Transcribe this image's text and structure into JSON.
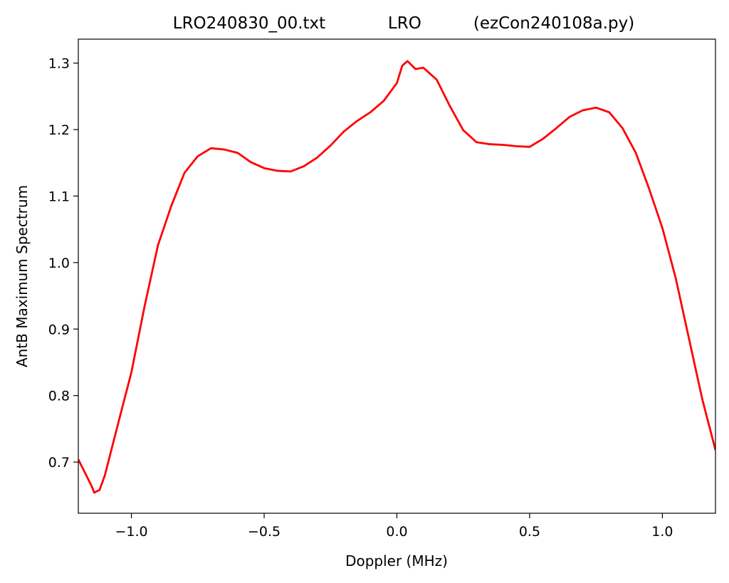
{
  "chart_data": {
    "type": "line",
    "title": "LRO240830_00.txt            LRO          (ezCon240108a.py)",
    "x_label": "Doppler (MHz)",
    "y_label": "AntB Maximum Spectrum",
    "x": [
      -1.2,
      -1.15,
      -1.14,
      -1.12,
      -1.1,
      -1.05,
      -1.0,
      -0.95,
      -0.9,
      -0.85,
      -0.8,
      -0.75,
      -0.7,
      -0.65,
      -0.6,
      -0.55,
      -0.5,
      -0.45,
      -0.4,
      -0.35,
      -0.3,
      -0.25,
      -0.2,
      -0.15,
      -0.1,
      -0.05,
      0.0,
      0.02,
      0.04,
      0.07,
      0.1,
      0.15,
      0.2,
      0.25,
      0.3,
      0.35,
      0.4,
      0.45,
      0.5,
      0.55,
      0.6,
      0.65,
      0.7,
      0.75,
      0.8,
      0.85,
      0.9,
      0.95,
      1.0,
      1.05,
      1.1,
      1.15,
      1.2
    ],
    "series": [
      {
        "color": "#ff0000",
        "values": [
          0.704,
          0.664,
          0.654,
          0.658,
          0.68,
          0.758,
          0.835,
          0.935,
          1.026,
          1.085,
          1.135,
          1.16,
          1.172,
          1.17,
          1.165,
          1.151,
          1.142,
          1.138,
          1.137,
          1.145,
          1.158,
          1.176,
          1.197,
          1.213,
          1.226,
          1.243,
          1.27,
          1.296,
          1.303,
          1.291,
          1.293,
          1.275,
          1.235,
          1.199,
          1.181,
          1.178,
          1.177,
          1.175,
          1.174,
          1.186,
          1.202,
          1.219,
          1.229,
          1.233,
          1.226,
          1.202,
          1.165,
          1.111,
          1.052,
          0.977,
          0.886,
          0.795,
          0.718
        ]
      }
    ],
    "xlim": [
      -1.2,
      1.2
    ],
    "ylim": [
      0.623,
      1.336
    ],
    "xticks": [
      {
        "value": -1.0,
        "label": "−1.0"
      },
      {
        "value": -0.5,
        "label": "−0.5"
      },
      {
        "value": 0.0,
        "label": "0.0"
      },
      0.5,
      {
        "value": 1.0,
        "label": "1.0"
      }
    ],
    "yticks": [
      0.7,
      0.8,
      0.9,
      {
        "value": 1.0,
        "label": "1.0"
      },
      1.1,
      1.2,
      1.3
    ]
  }
}
